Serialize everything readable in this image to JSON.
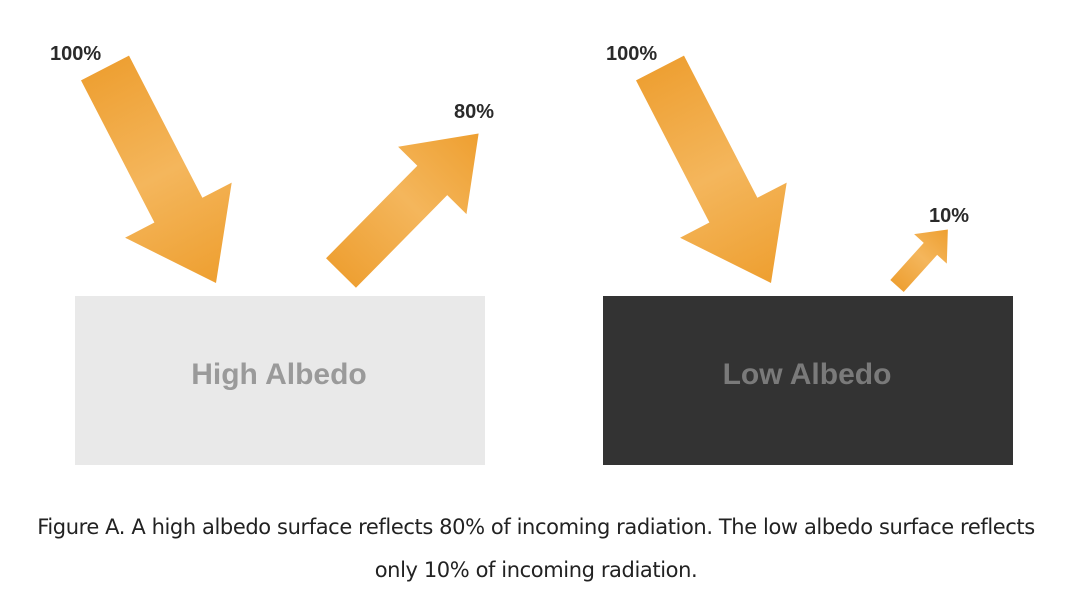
{
  "panels": [
    {
      "incoming_label": "100%",
      "reflected_label": "80%",
      "surface_label": "High Albedo"
    },
    {
      "incoming_label": "100%",
      "reflected_label": "10%",
      "surface_label": "Low Albedo"
    }
  ],
  "caption": "Figure A. A high albedo surface reflects 80% of incoming radiation. The low albedo surface reflects only 10% of incoming radiation."
}
